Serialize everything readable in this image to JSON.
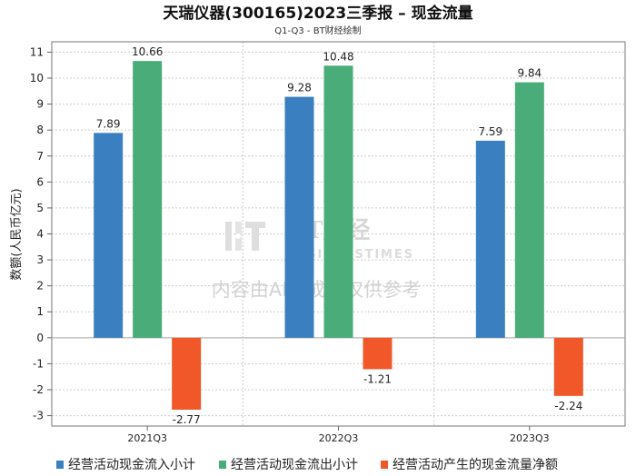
{
  "chart_data": {
    "type": "bar",
    "title": "天瑞仪器(300165)2023三季报 – 现金流量",
    "subtitle": "Q1-Q3 - BT财经绘制",
    "ylabel": "数额(人民币亿元)",
    "xlabel": "",
    "ylim": [
      -3.4,
      11.4
    ],
    "yticks": [
      -3,
      -2,
      -1,
      0,
      1,
      2,
      3,
      4,
      5,
      6,
      7,
      8,
      9,
      10,
      11
    ],
    "categories": [
      "2021Q3",
      "2022Q3",
      "2023Q3"
    ],
    "series": [
      {
        "name": "经营活动现金流入小计",
        "color": "#3a80c0",
        "values": [
          7.89,
          9.28,
          7.59
        ],
        "labels": [
          "7.89",
          "9.28",
          "7.59"
        ]
      },
      {
        "name": "经营活动现金流出小计",
        "color": "#4aac78",
        "values": [
          10.66,
          10.48,
          9.84
        ],
        "labels": [
          "10.66",
          "10.48",
          "9.84"
        ]
      },
      {
        "name": "经营活动产生的现金流量净额",
        "color": "#f0582a",
        "values": [
          -2.77,
          -1.21,
          -2.24
        ],
        "labels": [
          "-2.77",
          "-1.21",
          "-2.24"
        ]
      }
    ],
    "legend_position": "bottom",
    "grid": true
  },
  "watermark": {
    "brand": "BT财经",
    "brand_en": "BUSINESSTIMES",
    "ai_notice": "内容由AI生成，仅供参考"
  }
}
